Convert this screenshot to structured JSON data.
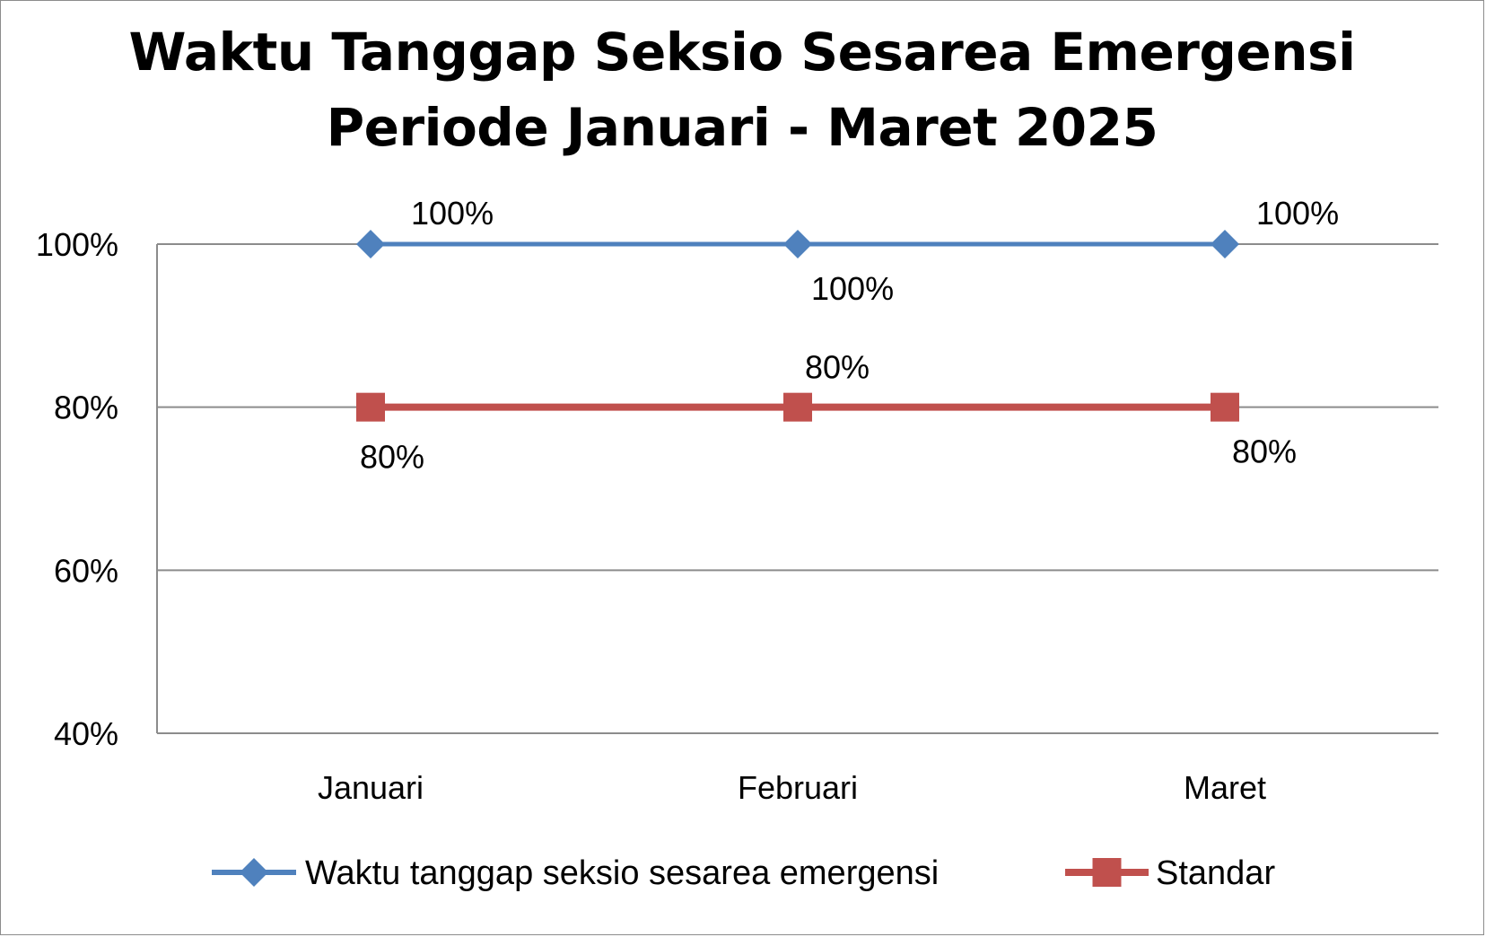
{
  "chart_data": {
    "type": "line",
    "title_line1": "Waktu Tanggap Seksio Sesarea Emergensi",
    "title_line2": "Periode Januari - Maret 2025",
    "xlabel": "",
    "ylabel": "",
    "categories": [
      "Januari",
      "Februari",
      "Maret"
    ],
    "ylim": [
      40,
      100
    ],
    "yticks": [
      40,
      60,
      80,
      100
    ],
    "ytick_labels": [
      "40%",
      "60%",
      "80%",
      "100%"
    ],
    "grid": true,
    "legend_position": "bottom",
    "series": [
      {
        "name": "Waktu tanggap seksio sesarea emergensi",
        "values": [
          100,
          100,
          100
        ],
        "labels": [
          "100%",
          "100%",
          "100%"
        ],
        "color": "#4f81bd",
        "marker": "diamond"
      },
      {
        "name": "Standar",
        "values": [
          80,
          80,
          80
        ],
        "labels": [
          "80%",
          "80%",
          "80%"
        ],
        "color": "#c0504d",
        "marker": "square"
      }
    ]
  }
}
